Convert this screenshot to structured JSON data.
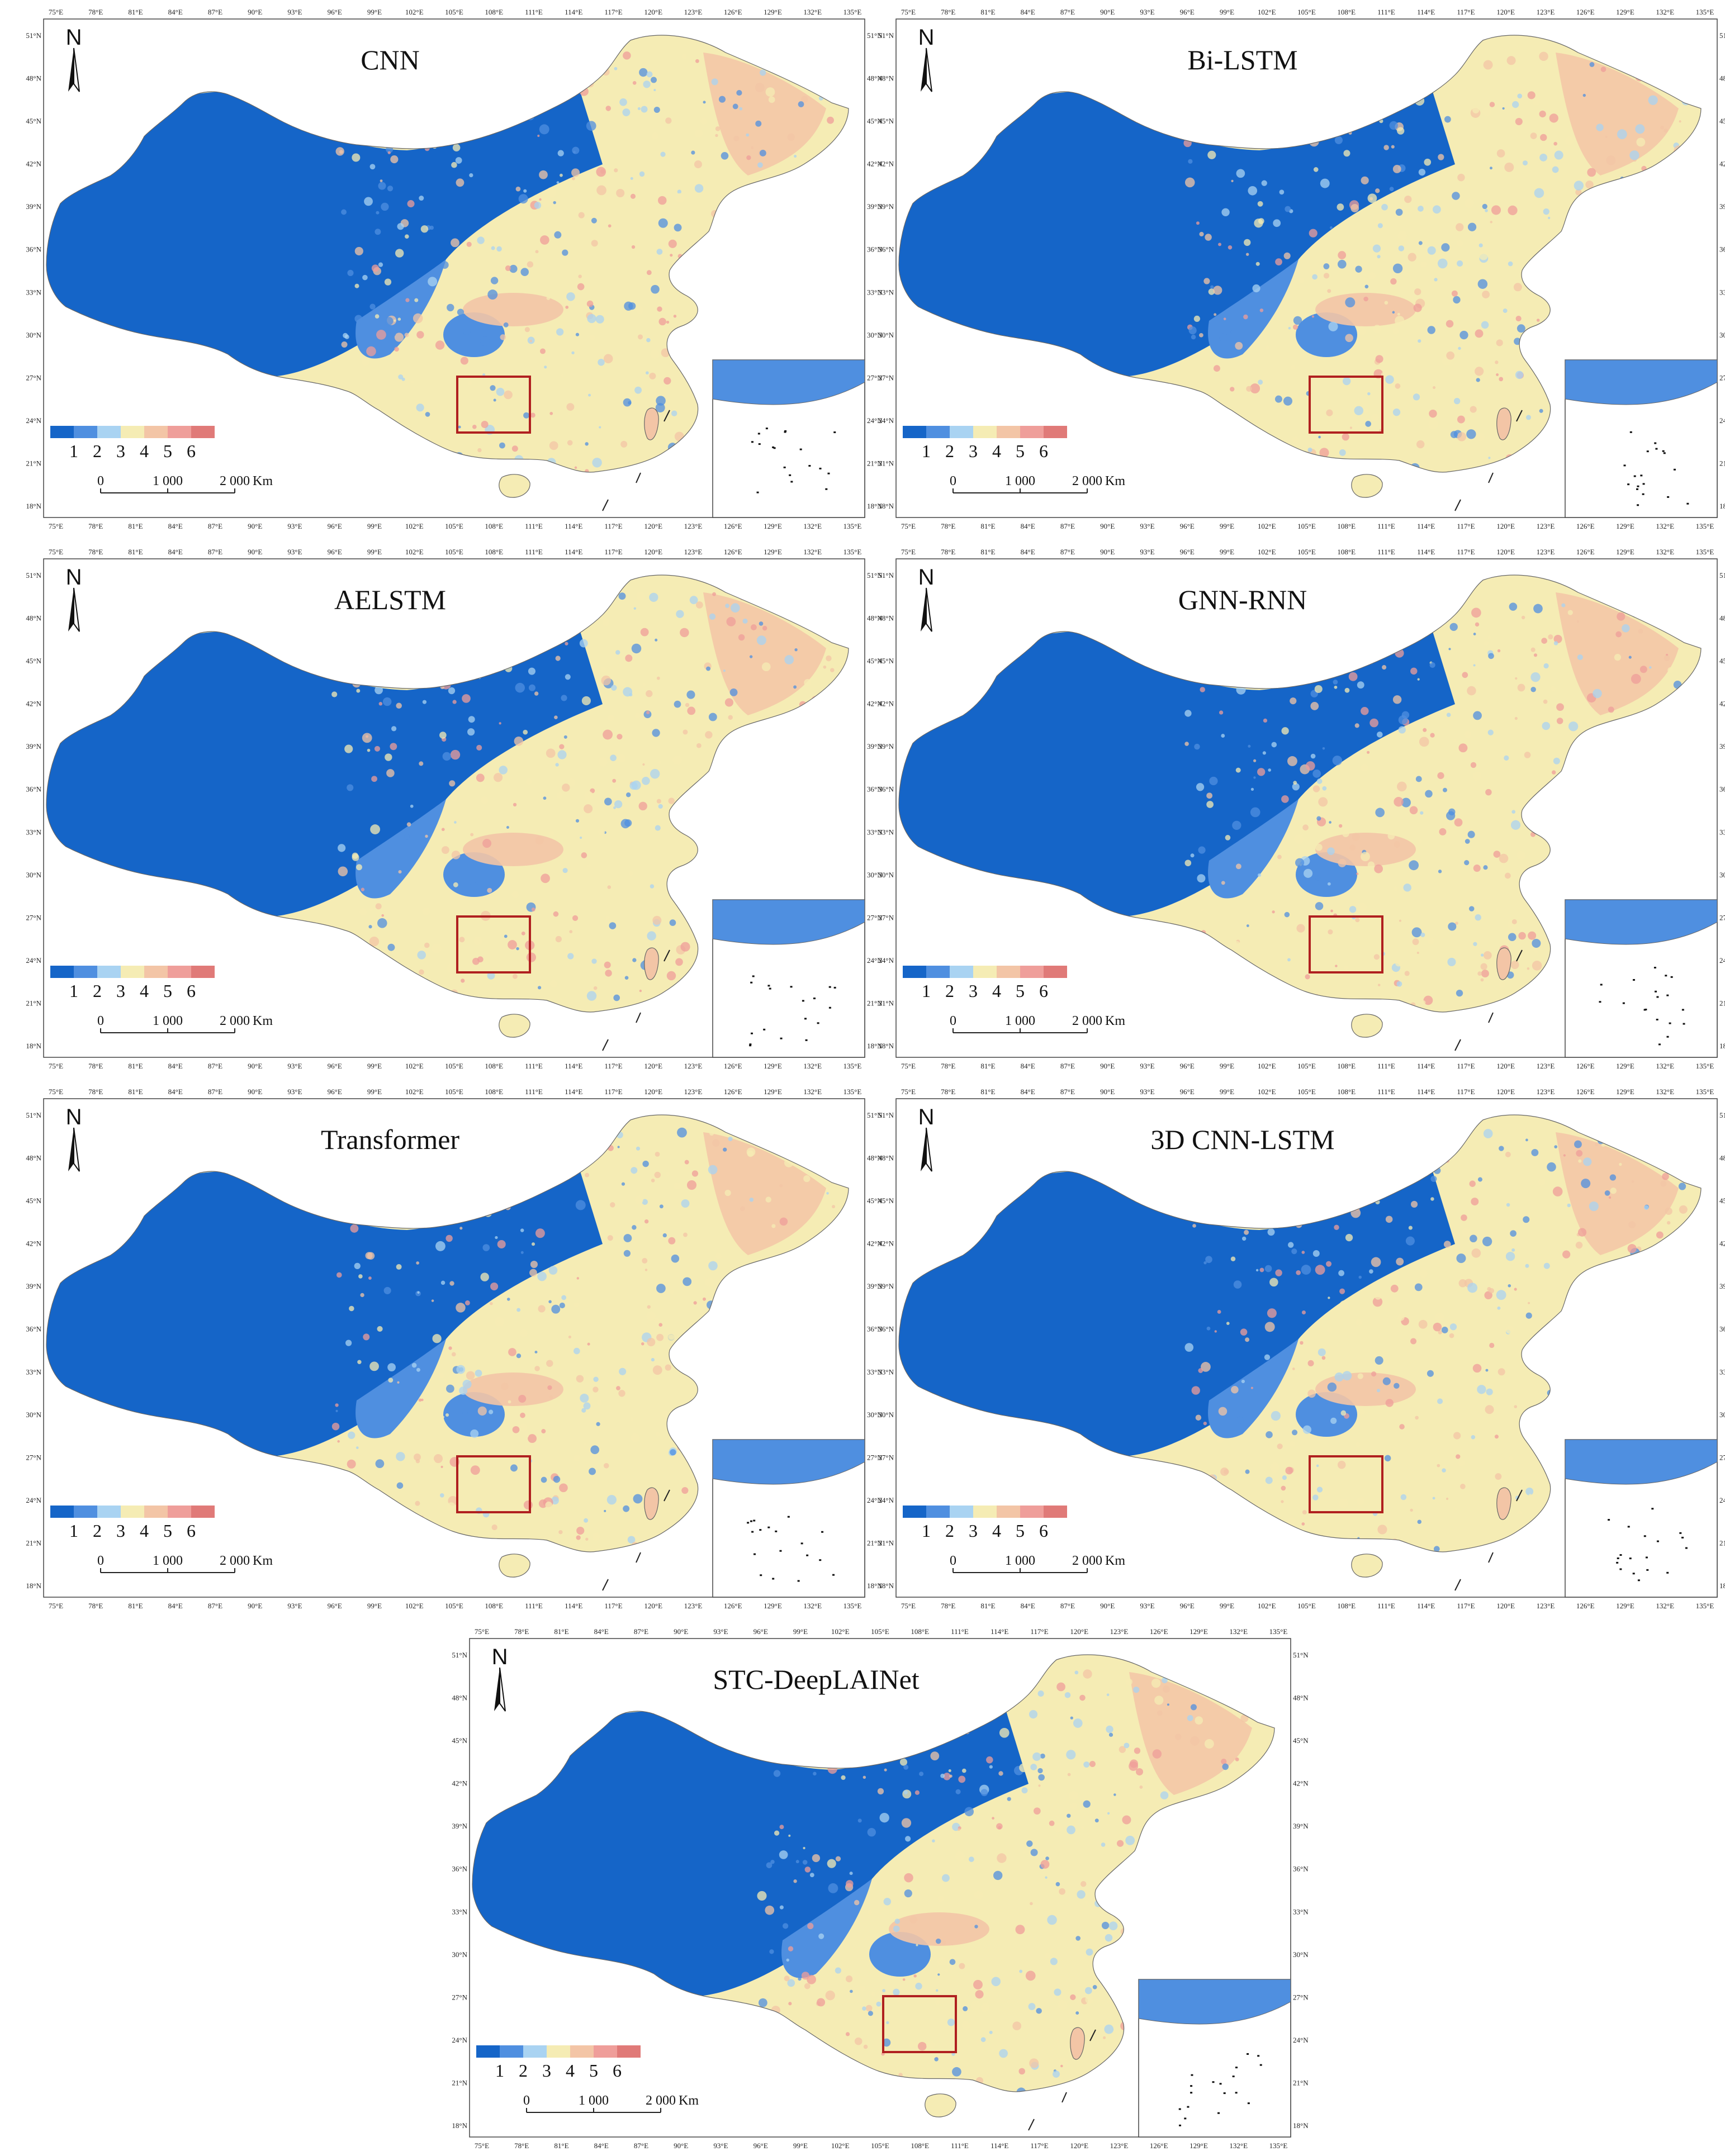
{
  "figure": {
    "lon_labels": [
      "75°E",
      "78°E",
      "81°E",
      "84°E",
      "87°E",
      "90°E",
      "93°E",
      "96°E",
      "99°E",
      "102°E",
      "105°E",
      "108°E",
      "111°E",
      "114°E",
      "117°E",
      "120°E",
      "123°E",
      "126°E",
      "129°E",
      "132°E",
      "135°E"
    ],
    "lat_labels": [
      "51°N",
      "48°N",
      "45°N",
      "42°N",
      "39°N",
      "36°N",
      "33°N",
      "30°N",
      "27°N",
      "24°N",
      "21°N",
      "18°N"
    ],
    "north_label": "N",
    "legend_classes": [
      "1",
      "2",
      "3",
      "4",
      "5",
      "6"
    ],
    "legend_colors": [
      "#1565c8",
      "#4f8fe0",
      "#a9d3f2",
      "#f5ecb4",
      "#f3c5a6",
      "#ef9e9a",
      "#e07a78"
    ],
    "scale_labels": [
      "0",
      "1 000",
      "2 000",
      "Km"
    ],
    "roi_color": "#b02020",
    "panels": [
      {
        "title": "CNN"
      },
      {
        "title": "Bi-LSTM"
      },
      {
        "title": "AELSTM"
      },
      {
        "title": "GNN-RNN"
      },
      {
        "title": "Transformer"
      },
      {
        "title": "3D CNN-LSTM"
      },
      {
        "title": "STC-DeepLAINet"
      }
    ]
  }
}
